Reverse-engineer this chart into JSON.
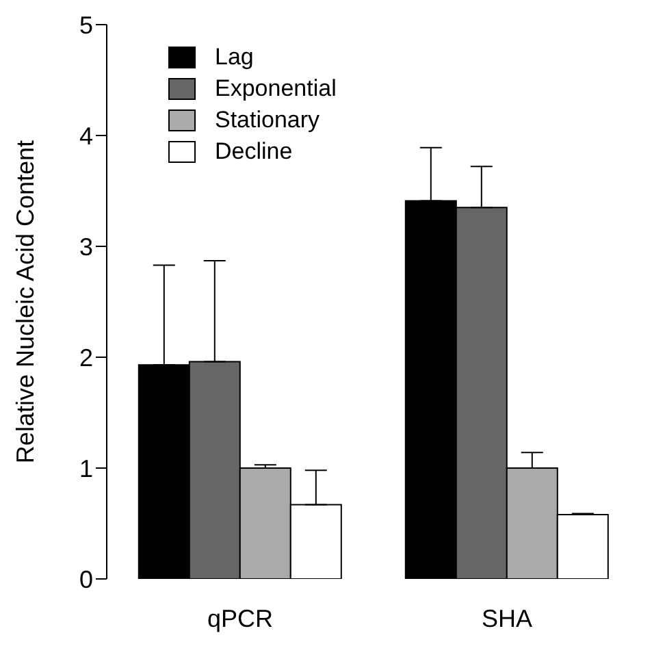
{
  "chart_data": {
    "type": "bar",
    "ylabel": "Relative Nucleic Acid Content",
    "categories": [
      "qPCR",
      "SHA"
    ],
    "series": [
      {
        "name": "Lag",
        "color": "#000000",
        "values": [
          1.93,
          3.41
        ],
        "errors": [
          [
            1.93,
            2.83
          ],
          [
            3.41,
            3.89
          ]
        ]
      },
      {
        "name": "Exponential",
        "color": "#666666",
        "values": [
          1.96,
          3.35
        ],
        "errors": [
          [
            1.96,
            2.87
          ],
          [
            3.35,
            3.72
          ]
        ]
      },
      {
        "name": "Stationary",
        "color": "#aaaaaa",
        "values": [
          1.0,
          1.0
        ],
        "errors": [
          [
            1.0,
            1.03
          ],
          [
            1.0,
            1.14
          ]
        ]
      },
      {
        "name": "Decline",
        "color": "#ffffff",
        "values": [
          0.67,
          0.58
        ],
        "errors": [
          [
            0.67,
            0.98
          ],
          [
            0.58,
            0.59
          ]
        ]
      }
    ],
    "ylim": [
      0,
      5
    ],
    "yticks": [
      0,
      1,
      2,
      3,
      4,
      5
    ],
    "grid": false,
    "legend": "top left"
  }
}
